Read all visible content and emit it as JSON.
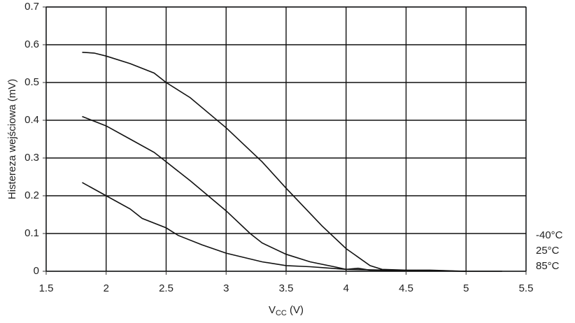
{
  "chart_data": {
    "type": "line",
    "y_label": "Histereza wejściowa (mV)",
    "x_label": {
      "main": "V",
      "sub": "CC",
      "rest": " (V)"
    },
    "xlim": [
      1.5,
      5.5
    ],
    "xticks": [
      1.5,
      2,
      2.5,
      3,
      3.5,
      4,
      4.5,
      5,
      5.5
    ],
    "ylim": [
      0,
      0.7
    ],
    "yticks": [
      0,
      0.1,
      0.2,
      0.3,
      0.4,
      0.5,
      0.6,
      0.7
    ],
    "grid": true,
    "series": [
      {
        "name": "-40°C",
        "color": "#111111",
        "x": [
          1.8,
          1.9,
          2.0,
          2.2,
          2.4,
          2.5,
          2.7,
          3.0,
          3.3,
          3.5,
          3.8,
          4.0,
          4.2,
          4.3,
          4.5,
          4.7,
          5.0,
          5.3
        ],
        "values": [
          0.58,
          0.578,
          0.57,
          0.55,
          0.525,
          0.5,
          0.46,
          0.38,
          0.29,
          0.22,
          0.12,
          0.06,
          0.015,
          0.005,
          0.003,
          0.003,
          0,
          0
        ]
      },
      {
        "name": "25°C",
        "color": "#111111",
        "x": [
          1.8,
          2.0,
          2.2,
          2.4,
          2.5,
          2.7,
          3.0,
          3.2,
          3.3,
          3.5,
          3.7,
          3.9,
          4.0,
          4.1,
          4.2,
          4.5,
          5.0
        ],
        "values": [
          0.41,
          0.385,
          0.35,
          0.315,
          0.29,
          0.24,
          0.16,
          0.1,
          0.075,
          0.045,
          0.025,
          0.012,
          0.005,
          0.008,
          0.003,
          0.002,
          0
        ]
      },
      {
        "name": "85°C",
        "color": "#111111",
        "x": [
          1.8,
          2.0,
          2.2,
          2.3,
          2.5,
          2.6,
          2.8,
          3.0,
          3.3,
          3.5,
          3.7,
          4.0,
          4.5,
          5.0
        ],
        "values": [
          0.235,
          0.2,
          0.165,
          0.14,
          0.115,
          0.095,
          0.07,
          0.048,
          0.025,
          0.015,
          0.012,
          0.005,
          0.002,
          0
        ]
      }
    ]
  }
}
